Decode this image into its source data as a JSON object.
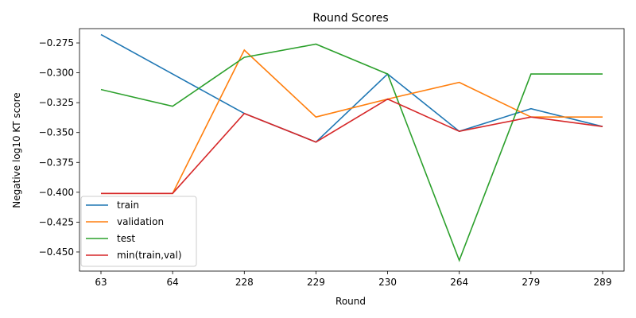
{
  "chart_data": {
    "type": "line",
    "title": "Round Scores",
    "xlabel": "Round",
    "ylabel": "Negative log10 KT score",
    "categories": [
      "63",
      "64",
      "228",
      "229",
      "230",
      "264",
      "279",
      "289"
    ],
    "ylim": [
      -0.466,
      -0.263
    ],
    "yticks": [
      -0.275,
      -0.3,
      -0.325,
      -0.35,
      -0.375,
      -0.4,
      -0.425,
      -0.45
    ],
    "ytick_labels": [
      "−0.275",
      "−0.300",
      "−0.325",
      "−0.350",
      "−0.375",
      "−0.400",
      "−0.425",
      "−0.450"
    ],
    "grid": false,
    "legend_position": "lower-left",
    "series": [
      {
        "name": "train",
        "color": "#1f77b4",
        "values": [
          -0.268,
          -0.301,
          -0.334,
          -0.358,
          -0.301,
          -0.349,
          -0.33,
          -0.345
        ]
      },
      {
        "name": "validation",
        "color": "#ff7f0e",
        "values": [
          -0.401,
          -0.401,
          -0.281,
          -0.337,
          -0.322,
          -0.308,
          -0.337,
          -0.337
        ]
      },
      {
        "name": "test",
        "color": "#2ca02c",
        "values": [
          -0.314,
          -0.328,
          -0.287,
          -0.276,
          -0.301,
          -0.457,
          -0.301,
          -0.301
        ]
      },
      {
        "name": "min(train,val)",
        "color": "#d62728",
        "values": [
          -0.401,
          -0.401,
          -0.334,
          -0.358,
          -0.322,
          -0.349,
          -0.337,
          -0.345
        ]
      }
    ]
  }
}
